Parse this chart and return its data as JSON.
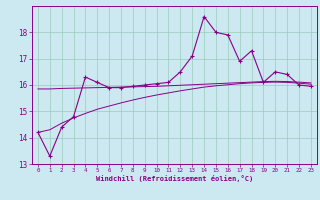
{
  "xlabel": "Windchill (Refroidissement éolien,°C)",
  "bg_color": "#cce8f0",
  "grid_color": "#99ccbb",
  "line_color": "#880088",
  "x_values": [
    0,
    1,
    2,
    3,
    4,
    5,
    6,
    7,
    8,
    9,
    10,
    11,
    12,
    13,
    14,
    15,
    16,
    17,
    18,
    19,
    20,
    21,
    22,
    23
  ],
  "y_main": [
    14.2,
    13.3,
    14.4,
    14.8,
    16.3,
    16.1,
    15.9,
    15.9,
    15.95,
    16.0,
    16.05,
    16.1,
    16.5,
    17.1,
    18.6,
    18.0,
    17.9,
    16.9,
    17.3,
    16.1,
    16.5,
    16.4,
    16.0,
    15.95
  ],
  "y_smooth1": [
    15.85,
    15.85,
    15.87,
    15.88,
    15.89,
    15.9,
    15.91,
    15.92,
    15.93,
    15.94,
    15.95,
    15.97,
    15.99,
    16.01,
    16.03,
    16.05,
    16.07,
    16.09,
    16.11,
    16.13,
    16.14,
    16.13,
    16.11,
    16.08
  ],
  "y_smooth2": [
    14.2,
    14.3,
    14.55,
    14.75,
    14.92,
    15.08,
    15.2,
    15.32,
    15.43,
    15.53,
    15.62,
    15.7,
    15.78,
    15.85,
    15.92,
    15.97,
    16.01,
    16.05,
    16.08,
    16.1,
    16.11,
    16.1,
    16.07,
    16.03
  ],
  "ylim": [
    13.0,
    19.0
  ],
  "yticks": [
    13,
    14,
    15,
    16,
    17,
    18
  ],
  "xticks": [
    0,
    1,
    2,
    3,
    4,
    5,
    6,
    7,
    8,
    9,
    10,
    11,
    12,
    13,
    14,
    15,
    16,
    17,
    18,
    19,
    20,
    21,
    22,
    23
  ],
  "xlim": [
    -0.5,
    23.5
  ]
}
